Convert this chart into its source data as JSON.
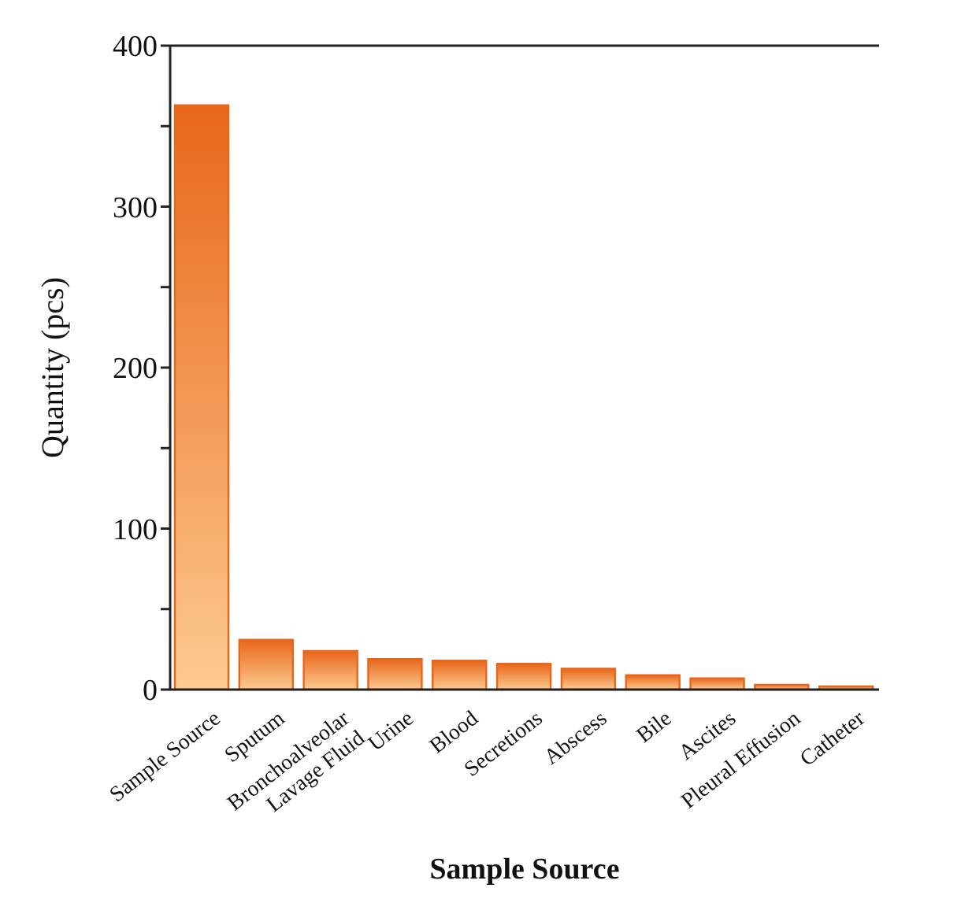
{
  "chart_data": {
    "type": "bar",
    "xlabel": "Sample Source",
    "ylabel": "Quantity (pcs)",
    "categories": [
      "Sample Source",
      "Sputum",
      "Bronchoalveolar Lavage Fluid",
      "Urine",
      "Blood",
      "Secretions",
      "Abscess",
      "Bile",
      "Ascites",
      "Pleural Effusion",
      "Catheter"
    ],
    "values": [
      363,
      31,
      24,
      19,
      18,
      16,
      13,
      9,
      7,
      3,
      2
    ],
    "color": "#e8661a",
    "ylim": [
      0,
      400
    ],
    "yticks": [
      0,
      {
        "value": 50,
        "label": null
      },
      100,
      {
        "value": 150,
        "label": null
      },
      200,
      {
        "value": 250,
        "label": null
      },
      300,
      {
        "value": 350,
        "label": null
      },
      400
    ],
    "grid": false,
    "legend": false
  }
}
